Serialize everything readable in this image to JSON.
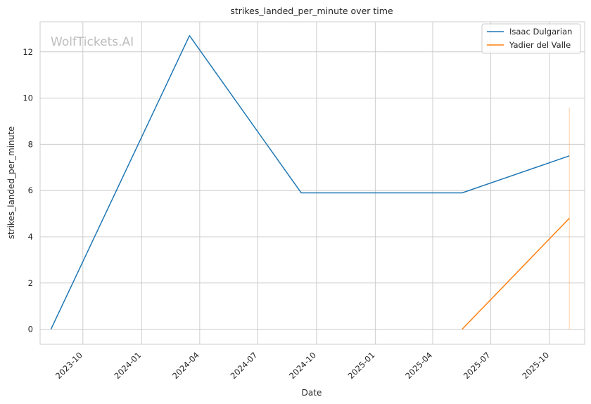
{
  "chart_data": {
    "type": "line",
    "title": "strikes_landed_per_minute over time",
    "xlabel": "Date",
    "ylabel": "strikes_landed_per_minute",
    "watermark": "WolfTickets.AI",
    "x_ticks": [
      "2023-10",
      "2024-01",
      "2024-04",
      "2024-07",
      "2024-10",
      "2025-01",
      "2025-04",
      "2025-07",
      "2025-10"
    ],
    "y_ticks": [
      0,
      2,
      4,
      6,
      8,
      10,
      12
    ],
    "ylim": [
      -0.65,
      13.3
    ],
    "xlim": [
      "2023-07-26",
      "2025-11-25"
    ],
    "grid": true,
    "legend_position": "top-right",
    "series": [
      {
        "name": "Isaac Dulgarian",
        "color": "#1f77b4",
        "points": [
          {
            "x": "2023-08-12",
            "y": 0
          },
          {
            "x": "2024-03-16",
            "y": 12.7
          },
          {
            "x": "2024-09-07",
            "y": 5.9
          },
          {
            "x": "2025-05-17",
            "y": 5.9
          },
          {
            "x": "2025-11-01",
            "y": 7.5
          }
        ]
      },
      {
        "name": "Yadier del Valle",
        "color": "#ff7f0e",
        "points": [
          {
            "x": "2025-05-17",
            "y": 0
          },
          {
            "x": "2025-11-01",
            "y": 4.8
          }
        ],
        "band": {
          "x": "2025-11-01",
          "y_low": 0,
          "y_high": 9.6
        }
      }
    ]
  }
}
